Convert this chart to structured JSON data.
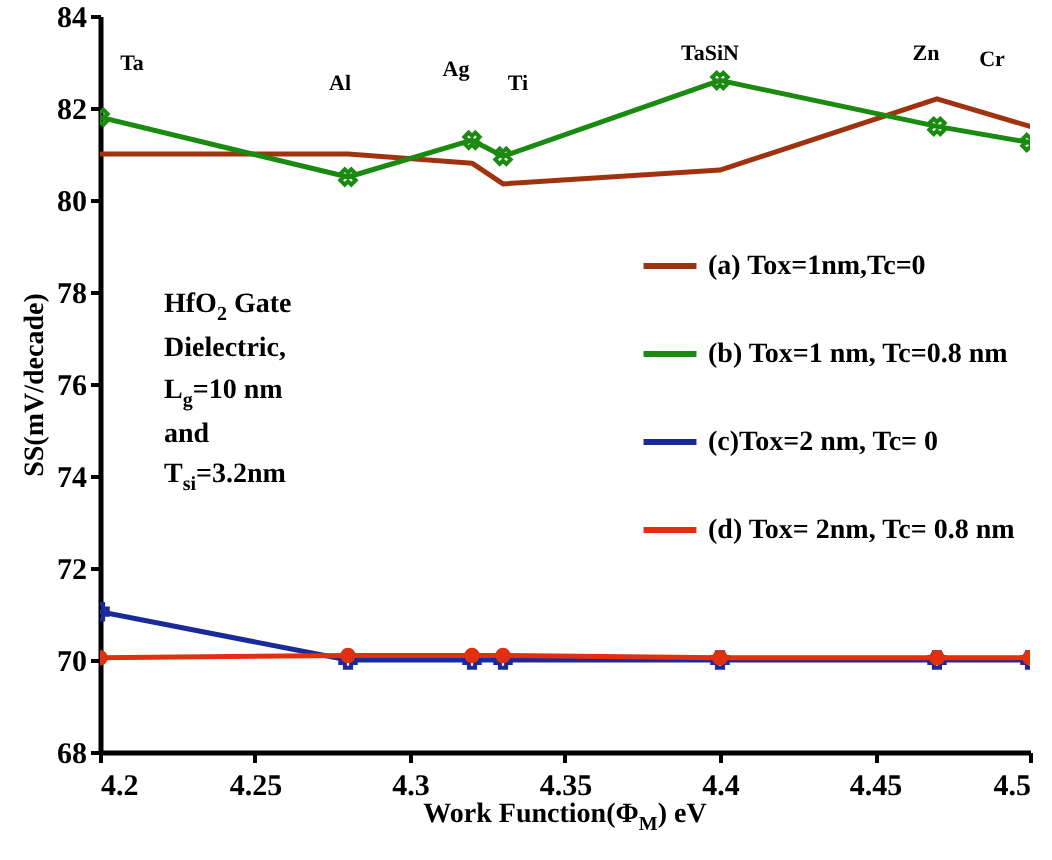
{
  "chart_data": {
    "type": "line",
    "xlabel": "Work Function(Φ$_{M}$) eV",
    "ylabel": "SS(mV/decade)",
    "x": [
      4.2,
      4.28,
      4.32,
      4.33,
      4.4,
      4.47,
      4.5
    ],
    "series": [
      {
        "name": "(a) Tox=1nm,Tc=0",
        "color": "#a0330f",
        "marker": "none",
        "values": [
          81.0,
          81.0,
          80.8,
          80.35,
          80.65,
          82.2,
          81.6
        ]
      },
      {
        "name": "(b) Tox=1 nm, Tc=0.8 nm",
        "color": "#1a8a10",
        "marker": "cross",
        "values": [
          81.8,
          80.5,
          81.3,
          80.95,
          82.6,
          81.6,
          81.25
        ]
      },
      {
        "name": "(c)Tox=2 nm, Tc= 0",
        "color": "#1a2a9a",
        "marker": "cross",
        "values": [
          71.05,
          70.0,
          70.0,
          70.0,
          70.0,
          70.0,
          70.0
        ]
      },
      {
        "name": "(d) Tox= 2nm, Tc= 0.8 nm",
        "color": "#e03010",
        "marker": "circle",
        "values": [
          70.05,
          70.1,
          70.1,
          70.1,
          70.05,
          70.05,
          70.05
        ]
      }
    ],
    "xlim": [
      4.2,
      4.5
    ],
    "xticks": [
      4.2,
      4.25,
      4.3,
      4.35,
      4.4,
      4.45,
      4.5
    ],
    "ylim": [
      68,
      84
    ],
    "yticks": [
      68,
      70,
      72,
      74,
      76,
      78,
      80,
      82,
      84
    ],
    "grid": false,
    "legend": "right",
    "annotations": [
      "Ta",
      "Al",
      "Ag",
      "Ti",
      "TaSiN",
      "Zn",
      "Cr",
      "HfO$_{2}$ Gate Dielectric, L$_{g}$=10 nm and T$_{si}$=3.2nm"
    ]
  }
}
